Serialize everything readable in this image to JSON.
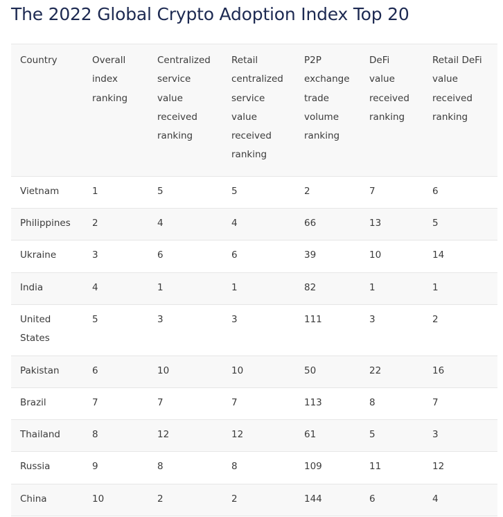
{
  "title": "The 2022 Global Crypto Adoption Index Top 20",
  "table": {
    "headers": [
      "Country",
      "Overall index ranking",
      "Centralized service value received ranking",
      "Retail centralized service value received ranking",
      "P2P exchange trade volume ranking",
      "DeFi value received ranking",
      "Retail DeFi value received ranking"
    ],
    "rows": [
      [
        "Vietnam",
        "1",
        "5",
        "5",
        "2",
        "7",
        "6"
      ],
      [
        "Philippines",
        "2",
        "4",
        "4",
        "66",
        "13",
        "5"
      ],
      [
        "Ukraine",
        "3",
        "6",
        "6",
        "39",
        "10",
        "14"
      ],
      [
        "India",
        "4",
        "1",
        "1",
        "82",
        "1",
        "1"
      ],
      [
        "United States",
        "5",
        "3",
        "3",
        "111",
        "3",
        "2"
      ],
      [
        "Pakistan",
        "6",
        "10",
        "10",
        "50",
        "22",
        "16"
      ],
      [
        "Brazil",
        "7",
        "7",
        "7",
        "113",
        "8",
        "7"
      ],
      [
        "Thailand",
        "8",
        "12",
        "12",
        "61",
        "5",
        "3"
      ],
      [
        "Russia",
        "9",
        "8",
        "8",
        "109",
        "11",
        "12"
      ],
      [
        "China",
        "10",
        "2",
        "2",
        "144",
        "6",
        "4"
      ]
    ]
  }
}
